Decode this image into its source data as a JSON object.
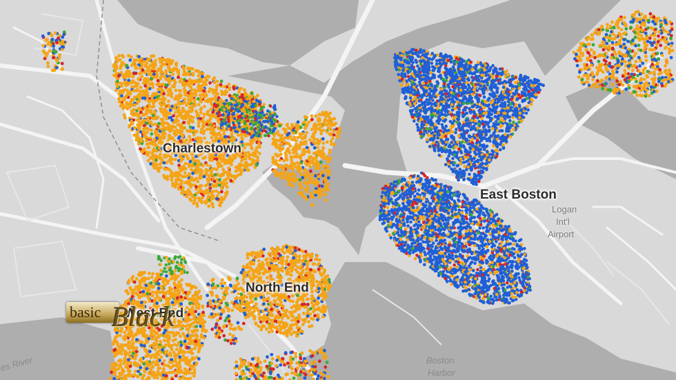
{
  "map": {
    "labels": {
      "charlestown": "Charlestown",
      "east_boston": "East Boston",
      "north_end": "North End",
      "west_end": "West End",
      "logan_1": "Logan",
      "logan_2": "Int'l",
      "logan_3": "Airport",
      "boston_harbor_1": "Boston",
      "boston_harbor_2": "Harbor",
      "charles_river": "es River"
    },
    "colors": {
      "land": "#d9d9d9",
      "water": "#aeaeae",
      "road": "#ffffff",
      "orange": "#f5a416",
      "blue": "#1f5fd6",
      "red": "#d6242a",
      "green": "#3aa83a"
    }
  },
  "watermark": {
    "word_1": "basic",
    "word_2": "Black"
  }
}
